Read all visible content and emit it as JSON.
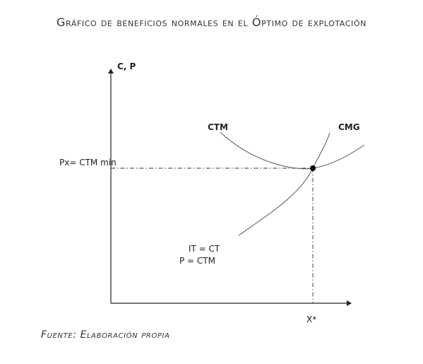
{
  "title": "Gráfico de beneficios normales en el Óptimo de explotación",
  "source": "Fuente: Elaboración propia",
  "diagram": {
    "y_axis_label": "C, P",
    "x_axis_point_label": "X*",
    "price_level_label": "Px= CTM min",
    "curves": {
      "ctm_label": "CTM",
      "cmg_label": "CMG"
    },
    "equilibrium": {
      "line1": "IT = CT",
      "line2": "P = CTM"
    },
    "colors": {
      "curve": "#555555",
      "axis": "#222222",
      "guide": "#333333",
      "point": "#000000"
    }
  }
}
